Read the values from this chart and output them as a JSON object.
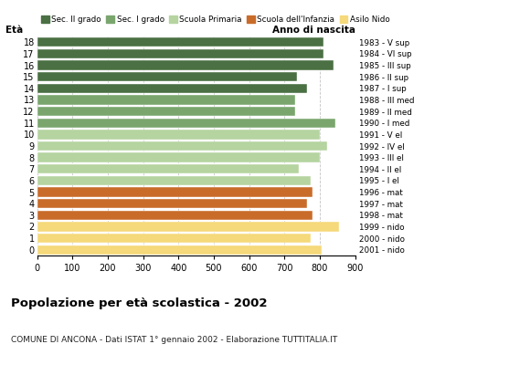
{
  "ages": [
    18,
    17,
    16,
    15,
    14,
    13,
    12,
    11,
    10,
    9,
    8,
    7,
    6,
    5,
    4,
    3,
    2,
    1,
    0
  ],
  "values": [
    810,
    810,
    840,
    735,
    765,
    730,
    730,
    845,
    800,
    820,
    800,
    740,
    775,
    780,
    765,
    780,
    855,
    775,
    805
  ],
  "right_labels": [
    "1983 - V sup",
    "1984 - VI sup",
    "1985 - III sup",
    "1986 - II sup",
    "1987 - I sup",
    "1988 - III med",
    "1989 - II med",
    "1990 - I med",
    "1991 - V el",
    "1992 - IV el",
    "1993 - III el",
    "1994 - II el",
    "1995 - I el",
    "1996 - mat",
    "1997 - mat",
    "1998 - mat",
    "1999 - nido",
    "2000 - nido",
    "2001 - nido"
  ],
  "colors": [
    "#4a7043",
    "#4a7043",
    "#4a7043",
    "#4a7043",
    "#4a7043",
    "#7aa66e",
    "#7aa66e",
    "#7aa66e",
    "#b5d4a0",
    "#b5d4a0",
    "#b5d4a0",
    "#b5d4a0",
    "#b5d4a0",
    "#c96c2a",
    "#c96c2a",
    "#c96c2a",
    "#f5d97a",
    "#f5d97a",
    "#f5d97a"
  ],
  "legend_labels": [
    "Sec. II grado",
    "Sec. I grado",
    "Scuola Primaria",
    "Scuola dell'Infanzia",
    "Asilo Nido"
  ],
  "legend_colors": [
    "#4a7043",
    "#7aa66e",
    "#b5d4a0",
    "#c96c2a",
    "#f5d97a"
  ],
  "title": "Popolazione per età scolastica - 2002",
  "subtitle": "COMUNE DI ANCONA - Dati ISTAT 1° gennaio 2002 - Elaborazione TUTTITALIA.IT",
  "xlabel_age": "Età",
  "xlabel_birth": "Anno di nascita",
  "xlim": [
    0,
    900
  ],
  "xticks": [
    0,
    100,
    200,
    300,
    400,
    500,
    600,
    700,
    800,
    900
  ],
  "bar_height": 0.82,
  "background_color": "#ffffff",
  "grid_color": "#aaaaaa"
}
